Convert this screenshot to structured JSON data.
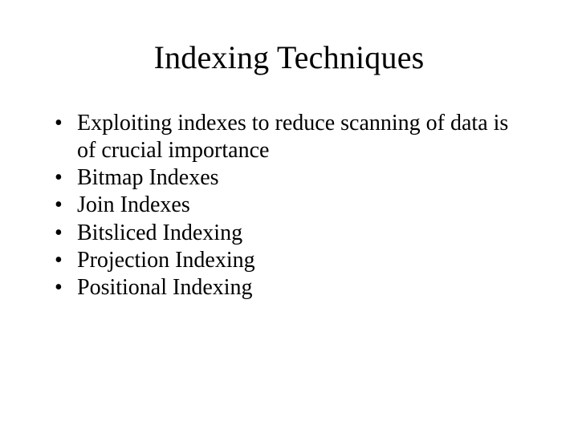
{
  "slide": {
    "title": "Indexing Techniques",
    "bullets": [
      "Exploiting indexes to reduce scanning of data is of crucial importance",
      "Bitmap Indexes",
      "Join Indexes",
      "Bitsliced Indexing",
      "Projection Indexing",
      "Positional Indexing"
    ],
    "colors": {
      "background": "#ffffff",
      "text": "#000000"
    },
    "typography": {
      "font_family": "Times New Roman",
      "title_fontsize_pt": 40,
      "body_fontsize_pt": 28
    }
  }
}
